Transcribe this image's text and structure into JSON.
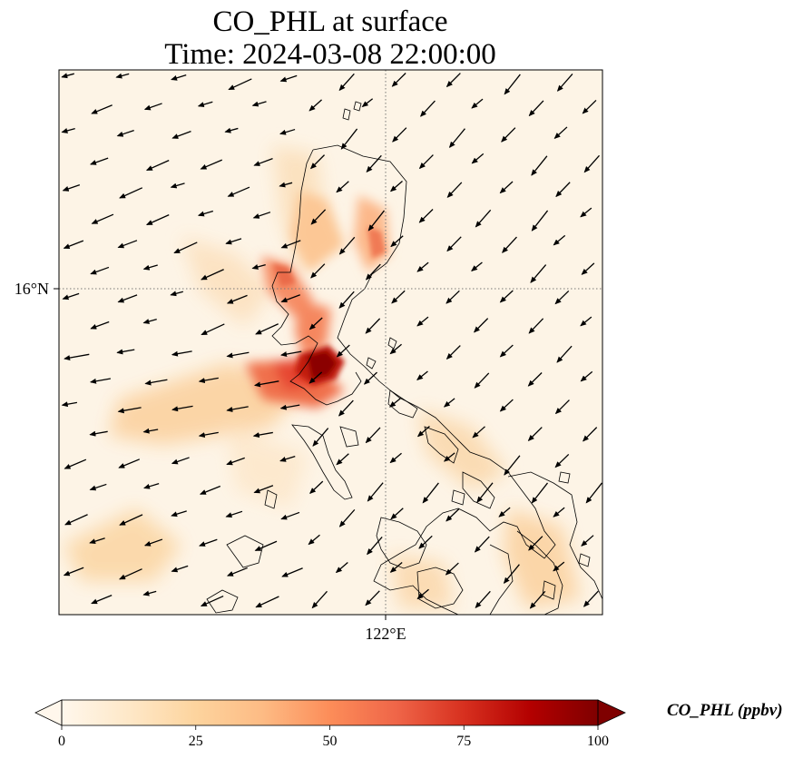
{
  "title": {
    "line1": "CO_PHL at surface",
    "line2": "Time: 2024-03-08 22:00:00"
  },
  "map": {
    "variable": "CO_PHL",
    "lat_tick_label": "16°N",
    "lon_tick_label": "122°E",
    "gridlines": "dotted",
    "coastlines": true,
    "wind_vectors": true,
    "prevailing_wind": "northeasterly",
    "colormap": "OrRd",
    "colors": {
      "low": "#fff7ec",
      "mid": "#fc8d59",
      "high": "#7f0000",
      "coastline": "#000000",
      "vector": "#000000"
    },
    "plume_max_value": 100
  },
  "colorbar": {
    "label": "CO_PHL (ppbv)",
    "tick_labels": [
      "0",
      "25",
      "50",
      "75",
      "100"
    ],
    "tick_values": [
      0,
      25,
      50,
      75,
      100
    ],
    "range": [
      0,
      100
    ],
    "extend": "both",
    "orientation": "horizontal"
  }
}
